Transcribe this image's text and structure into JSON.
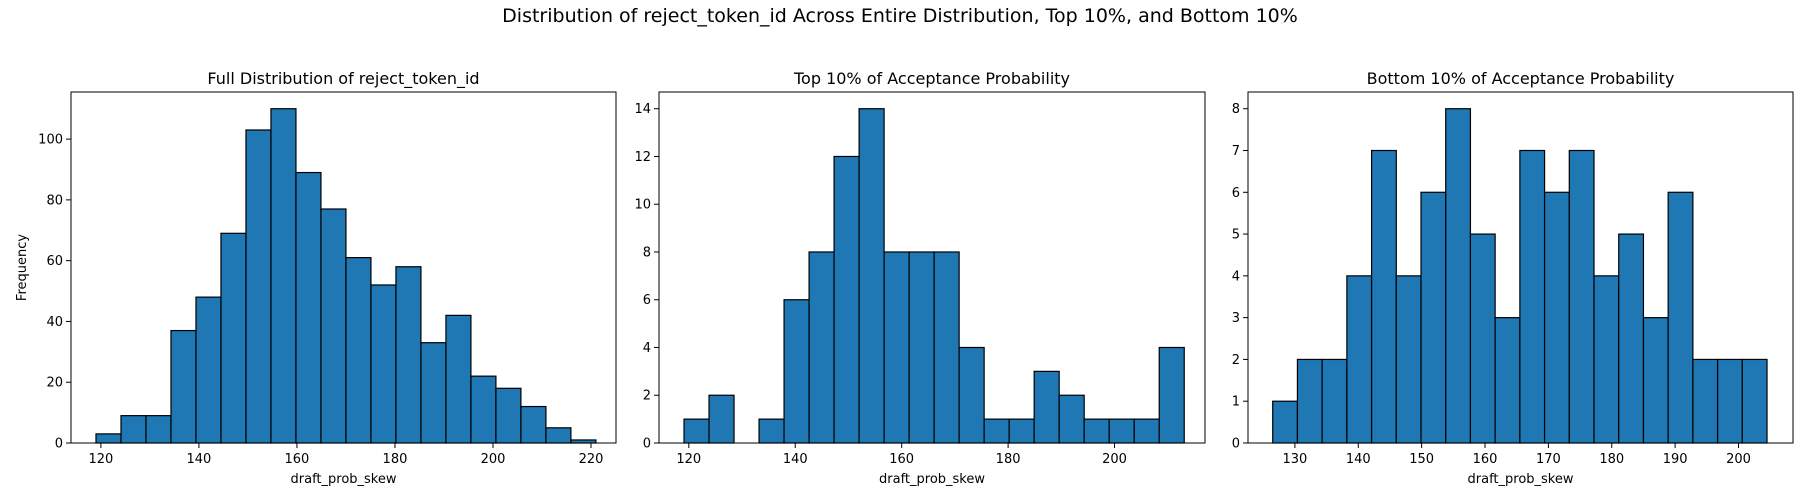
{
  "figure": {
    "suptitle": "Distribution of reject_token_id Across Entire Distribution, Top 10%, and Bottom 10%"
  },
  "colors": {
    "bar_fill": "#1f77b4",
    "bar_edge": "#000000"
  },
  "chart_data": [
    {
      "type": "bar",
      "title": "Full Distribution of reject_token_id",
      "xlabel": "draft_prob_skew",
      "ylabel": "Frequency",
      "xlim": [
        113.9,
        225.1
      ],
      "ylim": [
        0,
        115.5
      ],
      "xticks": [
        120,
        140,
        160,
        180,
        200,
        220
      ],
      "yticks": [
        0,
        20,
        40,
        60,
        80,
        100
      ],
      "bin_edges": [
        119.0,
        124.1,
        129.2,
        134.3,
        139.4,
        144.5,
        149.6,
        154.7,
        159.8,
        164.9,
        170.0,
        175.1,
        180.2,
        185.3,
        190.4,
        195.5,
        200.6,
        205.7,
        210.8,
        215.9,
        221.0
      ],
      "counts": [
        3,
        9,
        9,
        37,
        48,
        69,
        103,
        110,
        89,
        77,
        61,
        52,
        58,
        33,
        42,
        22,
        18,
        12,
        5,
        1
      ]
    },
    {
      "type": "bar",
      "title": "Top 10% of Acceptance Probability",
      "xlabel": "draft_prob_skew",
      "ylabel": "",
      "xlim": [
        114.4,
        217.0
      ],
      "ylim": [
        0,
        14.7
      ],
      "xticks": [
        120,
        140,
        160,
        180,
        200
      ],
      "yticks": [
        0,
        2,
        4,
        6,
        8,
        10,
        12,
        14
      ],
      "bin_edges": [
        119.1,
        123.8,
        128.5,
        133.2,
        137.9,
        142.6,
        147.3,
        152.0,
        156.7,
        161.4,
        166.1,
        170.8,
        175.5,
        180.2,
        184.9,
        189.6,
        194.3,
        199.0,
        203.7,
        208.4,
        213.1
      ],
      "counts": [
        1,
        2,
        0,
        1,
        6,
        8,
        12,
        14,
        8,
        8,
        8,
        4,
        1,
        1,
        3,
        2,
        1,
        1,
        1,
        4
      ]
    },
    {
      "type": "bar",
      "title": "Bottom 10% of Acceptance Probability",
      "xlabel": "draft_prob_skew",
      "ylabel": "",
      "xlim": [
        122.6,
        208.6
      ],
      "ylim": [
        0,
        8.4
      ],
      "xticks": [
        130,
        140,
        150,
        160,
        170,
        180,
        190,
        200
      ],
      "yticks": [
        0,
        1,
        2,
        3,
        4,
        5,
        6,
        7,
        8
      ],
      "bin_edges": [
        126.5,
        130.4,
        134.3,
        138.2,
        142.1,
        146.0,
        149.9,
        153.8,
        157.7,
        161.6,
        165.5,
        169.4,
        173.3,
        177.2,
        181.1,
        185.0,
        188.9,
        192.8,
        196.7,
        200.6,
        204.5
      ],
      "counts": [
        1,
        2,
        2,
        4,
        7,
        4,
        6,
        8,
        5,
        3,
        7,
        6,
        7,
        4,
        5,
        3,
        6,
        2,
        2,
        2
      ]
    }
  ]
}
